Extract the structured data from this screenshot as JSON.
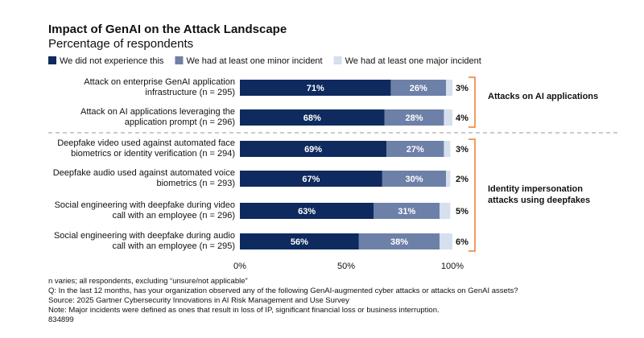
{
  "chart_data": {
    "type": "stacked-bar-horizontal",
    "title": "Impact of GenAI on the Attack Landscape",
    "subtitle": "Percentage of respondents",
    "categories": [
      "Attack on enterprise GenAI application infrastructure (n = 295)",
      "Attack on AI applications leveraging the application prompt (n = 296)",
      "Deepfake video used against automated face biometrics or identity verification (n = 294)",
      "Deepfake audio used against automated voice biometrics (n = 293)",
      "Social engineering with deepfake during video call with an employee (n = 296)",
      "Social engineering with deepfake during audio call with an employee (n = 295)"
    ],
    "series": [
      {
        "name": "We did not experience this",
        "color": "#0e2a5e",
        "values": [
          71,
          68,
          69,
          67,
          63,
          56
        ],
        "value_labels": [
          "71%",
          "68%",
          "69%",
          "67%",
          "63%",
          "56%"
        ]
      },
      {
        "name": "We had at least one minor incident",
        "color": "#6d80a8",
        "values": [
          26,
          28,
          27,
          30,
          31,
          38
        ],
        "value_labels": [
          "26%",
          "28%",
          "27%",
          "30%",
          "31%",
          "38%"
        ]
      },
      {
        "name": "We had at least one major incident",
        "color": "#d5dfee",
        "values": [
          3,
          4,
          3,
          2,
          5,
          6
        ],
        "value_labels": [
          "3%",
          "4%",
          "3%",
          "2%",
          "5%",
          "6%"
        ]
      }
    ],
    "xlim": [
      0,
      100
    ],
    "xticks": [
      {
        "value": 0,
        "label": "0%"
      },
      {
        "value": 50,
        "label": "50%"
      },
      {
        "value": 100,
        "label": "100%"
      }
    ],
    "annotations": [
      "Attacks on AI applications",
      "Identity impersonation attacks using deepfakes"
    ],
    "notes": [
      "n varies; all respondents, excluding “unsure/not applicable”",
      "Q: In the last 12 months, has your organization observed any of the following GenAI-augmented cyber attacks or attacks on GenAI assets?",
      "Source: 2025 Gartner Cybersecurity Innovations in AI Risk Management and Use Survey",
      "Note: Major incidents were defined as ones that result in loss of IP, significant financial loss or business interruption.",
      "834899"
    ]
  }
}
